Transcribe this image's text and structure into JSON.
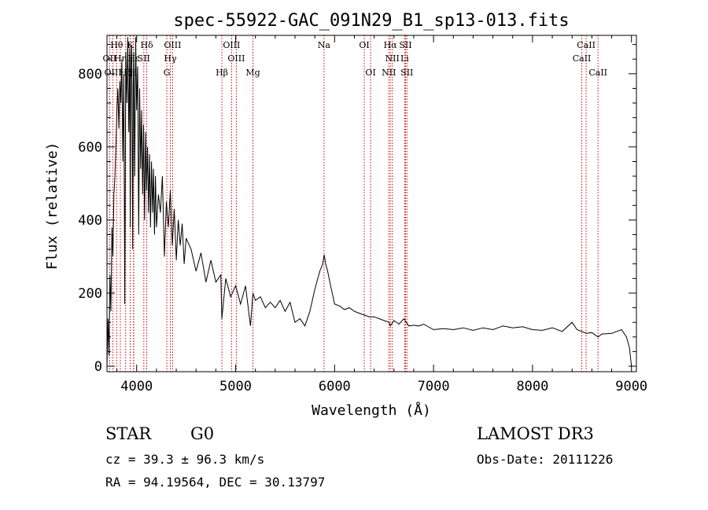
{
  "chart_data": {
    "type": "line",
    "title": "spec-55922-GAC_091N29_B1_sp13-013.fits",
    "xlabel": "Wavelength (Å)",
    "ylabel": "Flux (relative)",
    "xlim": [
      3700,
      9050
    ],
    "ylim": [
      -15,
      905
    ],
    "xticks": [
      4000,
      5000,
      6000,
      7000,
      8000,
      9000
    ],
    "yticks": [
      0,
      200,
      400,
      600,
      800
    ],
    "line_color": "#000000",
    "marker_color": "#cc0000",
    "series": [
      {
        "name": "spectrum",
        "x": [
          3700,
          3710,
          3720,
          3730,
          3740,
          3750,
          3760,
          3770,
          3780,
          3790,
          3800,
          3810,
          3820,
          3830,
          3840,
          3850,
          3860,
          3870,
          3880,
          3890,
          3900,
          3910,
          3920,
          3930,
          3935,
          3940,
          3950,
          3960,
          3965,
          3970,
          3980,
          3990,
          4000,
          4010,
          4020,
          4030,
          4040,
          4050,
          4060,
          4070,
          4080,
          4090,
          4100,
          4110,
          4120,
          4130,
          4140,
          4150,
          4160,
          4170,
          4180,
          4190,
          4200,
          4220,
          4240,
          4260,
          4280,
          4300,
          4320,
          4340,
          4360,
          4380,
          4400,
          4420,
          4440,
          4460,
          4480,
          4500,
          4550,
          4600,
          4650,
          4700,
          4750,
          4800,
          4850,
          4861,
          4900,
          4950,
          5000,
          5050,
          5100,
          5150,
          5175,
          5200,
          5250,
          5300,
          5350,
          5400,
          5450,
          5500,
          5550,
          5600,
          5650,
          5700,
          5750,
          5800,
          5850,
          5880,
          5895,
          5910,
          5930,
          5960,
          6000,
          6050,
          6100,
          6150,
          6200,
          6250,
          6300,
          6350,
          6400,
          6450,
          6500,
          6550,
          6563,
          6600,
          6650,
          6700,
          6750,
          6800,
          6850,
          6900,
          7000,
          7100,
          7200,
          7300,
          7400,
          7500,
          7600,
          7700,
          7800,
          7900,
          8000,
          8100,
          8200,
          8300,
          8400,
          8450,
          8500,
          8542,
          8600,
          8662,
          8700,
          8800,
          8850,
          8900,
          8950,
          8980,
          9000
        ],
        "values": [
          0,
          130,
          30,
          250,
          150,
          380,
          300,
          470,
          520,
          600,
          700,
          760,
          650,
          780,
          720,
          840,
          560,
          800,
          170,
          860,
          720,
          900,
          640,
          870,
          380,
          820,
          880,
          320,
          760,
          860,
          520,
          900,
          700,
          820,
          360,
          760,
          540,
          700,
          470,
          660,
          400,
          640,
          480,
          600,
          420,
          580,
          380,
          560,
          420,
          540,
          360,
          520,
          380,
          470,
          420,
          520,
          300,
          450,
          380,
          480,
          330,
          430,
          290,
          400,
          330,
          390,
          280,
          350,
          320,
          260,
          310,
          230,
          290,
          230,
          250,
          130,
          240,
          190,
          220,
          170,
          220,
          110,
          200,
          180,
          190,
          160,
          175,
          160,
          180,
          150,
          175,
          120,
          130,
          110,
          150,
          210,
          260,
          280,
          305,
          280,
          260,
          220,
          170,
          165,
          155,
          160,
          150,
          145,
          140,
          135,
          135,
          130,
          125,
          120,
          110,
          125,
          115,
          130,
          110,
          112,
          110,
          115,
          100,
          103,
          100,
          105,
          98,
          105,
          100,
          110,
          105,
          108,
          100,
          98,
          105,
          95,
          120,
          100,
          95,
          90,
          92,
          80,
          88,
          90,
          95,
          100,
          80,
          50,
          0
        ]
      }
    ],
    "lines": [
      {
        "label": "Hθ",
        "x": 3798,
        "row": 1
      },
      {
        "label": "K",
        "x": 3934,
        "row": 1
      },
      {
        "label": "Hδ",
        "x": 4102,
        "row": 1
      },
      {
        "label": "OIII",
        "x": 4363,
        "row": 1
      },
      {
        "label": "OIII",
        "x": 4959,
        "row": 1
      },
      {
        "label": "OI",
        "x": 6300,
        "row": 1
      },
      {
        "label": "Hα",
        "x": 6563,
        "row": 1
      },
      {
        "label": "SII",
        "x": 6717,
        "row": 1
      },
      {
        "label": "CaII",
        "x": 8542,
        "row": 1
      },
      {
        "label": "OII",
        "x": 3727,
        "row": 2
      },
      {
        "label": "Hη",
        "x": 3835,
        "row": 2
      },
      {
        "label": "Hε",
        "x": 3970,
        "row": 2
      },
      {
        "label": "SII",
        "x": 4072,
        "row": 2
      },
      {
        "label": "Hγ",
        "x": 4340,
        "row": 2
      },
      {
        "label": "OIII",
        "x": 5007,
        "row": 2
      },
      {
        "label": "NII",
        "x": 6583,
        "row": 2
      },
      {
        "label": "Li",
        "x": 6708,
        "row": 2
      },
      {
        "label": "CaII",
        "x": 8498,
        "row": 2
      },
      {
        "label": "OIII",
        "x": 3760,
        "row": 3
      },
      {
        "label": "Hζ",
        "x": 3889,
        "row": 3
      },
      {
        "label": "H",
        "x": 3968,
        "row": 3
      },
      {
        "label": "G",
        "x": 4305,
        "row": 3
      },
      {
        "label": "Hβ",
        "x": 4861,
        "row": 3
      },
      {
        "label": "Mg",
        "x": 5175,
        "row": 3
      },
      {
        "label": "Na",
        "x": 5893,
        "row": 1
      },
      {
        "label": "OI",
        "x": 6364,
        "row": 3
      },
      {
        "label": "NII",
        "x": 6548,
        "row": 3
      },
      {
        "label": "SII",
        "x": 6731,
        "row": 3
      },
      {
        "label": "CaII",
        "x": 8662,
        "row": 3
      }
    ]
  },
  "info": {
    "class": "STAR",
    "subclass": "G0",
    "survey": "LAMOST DR3",
    "cz": "cz = 39.3 ± 96.3 km/s",
    "obs_date": "Obs-Date: 20111226",
    "radec": "RA =  94.19564, DEC =  30.13797"
  }
}
